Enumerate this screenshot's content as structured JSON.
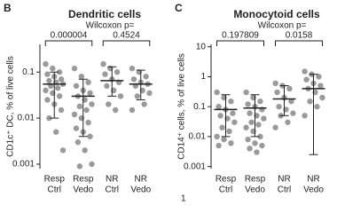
{
  "chart_data": [
    {
      "type": "dot",
      "panel": "B",
      "title": "Dendritic cells",
      "subtitle": "Wilcoxon p=",
      "y_label": "CD1c⁺ DC, % of live cells",
      "categories": [
        [
          "Resp",
          "Ctrl"
        ],
        [
          "Resp",
          "Vedo"
        ],
        [
          "NR",
          "Ctrl"
        ],
        [
          "NR",
          "Vedo"
        ]
      ],
      "p_values": [
        "0.000004",
        "0.4524"
      ],
      "log_y": true,
      "ylim": [
        0.0008,
        0.4
      ],
      "yticks": [
        0.001,
        0.01,
        0.1
      ],
      "color": "#9a9a9a",
      "points": [
        [
          0.15,
          0.12,
          0.1,
          0.09,
          0.08,
          0.07,
          0.065,
          0.06,
          0.055,
          0.05,
          0.045,
          0.04,
          0.035,
          0.03,
          0.025,
          0.02,
          0.015,
          0.01,
          0.005,
          0.002
        ],
        [
          0.12,
          0.08,
          0.06,
          0.05,
          0.04,
          0.035,
          0.03,
          0.025,
          0.02,
          0.018,
          0.015,
          0.012,
          0.01,
          0.008,
          0.006,
          0.005,
          0.004,
          0.003,
          0.002,
          0.001,
          0.0009
        ],
        [
          0.15,
          0.12,
          0.1,
          0.09,
          0.07,
          0.06,
          0.05,
          0.04,
          0.03,
          0.02,
          0.015
        ],
        [
          0.12,
          0.1,
          0.08,
          0.07,
          0.06,
          0.055,
          0.05,
          0.04,
          0.035,
          0.03,
          0.02,
          0.015
        ]
      ],
      "means": [
        0.055,
        0.03,
        0.065,
        0.055
      ],
      "err_low": [
        0.01,
        0.004,
        0.03,
        0.025
      ],
      "err_high": [
        0.1,
        0.07,
        0.13,
        0.11
      ]
    },
    {
      "type": "dot",
      "panel": "C",
      "title": "Monocytoid cells",
      "subtitle": "Wilcoxon p=",
      "y_label": "CD14⁺ cells, % of live cells",
      "categories": [
        [
          "Resp",
          "Ctrl"
        ],
        [
          "Resp",
          "Vedo"
        ],
        [
          "NR",
          "Ctrl"
        ],
        [
          "NR",
          "Vedo"
        ]
      ],
      "p_values": [
        "0.197809",
        "0.0158"
      ],
      "note": "1",
      "log_y": true,
      "ylim": [
        0.00085,
        12
      ],
      "yticks": [
        0.001,
        0.01,
        0.1,
        1,
        10
      ],
      "color": "#9a9a9a",
      "points": [
        [
          0.3,
          0.2,
          0.15,
          0.1,
          0.08,
          0.06,
          0.05,
          0.04,
          0.03,
          0.02,
          0.015,
          0.01,
          0.008,
          0.006,
          0.005
        ],
        [
          0.3,
          0.2,
          0.15,
          0.12,
          0.1,
          0.08,
          0.06,
          0.05,
          0.04,
          0.03,
          0.025,
          0.02,
          0.015,
          0.01,
          0.008,
          0.006,
          0.005,
          0.004,
          0.003
        ],
        [
          0.6,
          0.5,
          0.4,
          0.3,
          0.2,
          0.15,
          0.1,
          0.08,
          0.06,
          0.05,
          0.03,
          0.02
        ],
        [
          1.5,
          1.2,
          1,
          0.8,
          0.6,
          0.5,
          0.4,
          0.3,
          0.2,
          0.15,
          0.1,
          0.05
        ]
      ],
      "means": [
        0.08,
        0.09,
        0.18,
        0.4
      ],
      "err_low": [
        0.01,
        0.01,
        0.05,
        0.0025
      ],
      "err_high": [
        0.25,
        0.25,
        0.5,
        1.2
      ]
    }
  ]
}
